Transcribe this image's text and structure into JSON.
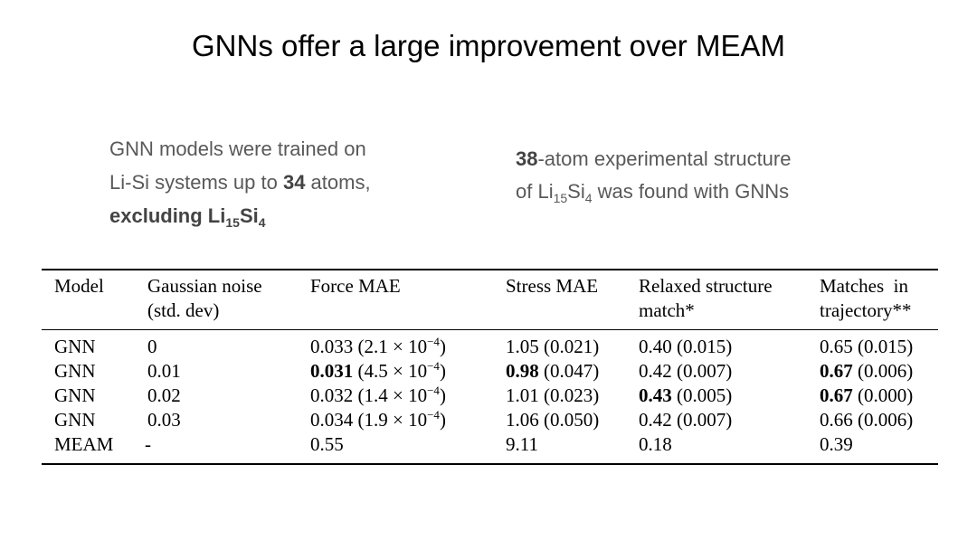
{
  "title": "GNNs offer a large improvement over MEAM",
  "note_left": {
    "line1": "GNN models were trained on",
    "line2_pre": "Li-Si systems up to ",
    "line2_bold": "34",
    "line2_post": " atoms,",
    "line3_bold": "excluding Li",
    "line3_sub1": "15",
    "line3_mid": "Si",
    "line3_sub2": "4"
  },
  "note_right": {
    "line1_bold": "38",
    "line1_post": "-atom experimental structure",
    "line2_pre": "of Li",
    "line2_sub1": "15",
    "line2_mid": "Si",
    "line2_sub2": "4",
    "line2_post": " was found with GNNs"
  },
  "table": {
    "headers": {
      "model": "Model",
      "noise_1": "Gaussian noise",
      "noise_2": "(std. dev)",
      "force": "Force MAE",
      "stress": "Stress MAE",
      "relaxed_1": "Relaxed structure",
      "relaxed_2": "match*",
      "matches_1": "Matches  in",
      "matches_2": "trajectory**"
    },
    "rows": [
      {
        "model": "GNN",
        "noise": "0",
        "force": "0.033",
        "force_rest": " (2.1 × 10",
        "force_exp": "−4",
        "force_close": ")",
        "stress": "1.05",
        "stress_rest": " (0.021)",
        "relaxed": "0.40",
        "relaxed_rest": " (0.015)",
        "matches": "0.65",
        "matches_rest": " (0.015)"
      },
      {
        "model": "GNN",
        "noise": "0.01",
        "force": "0.031",
        "force_rest": " (4.5 × 10",
        "force_exp": "−4",
        "force_close": ")",
        "stress": "0.98",
        "stress_rest": " (0.047)",
        "relaxed": "0.42",
        "relaxed_rest": " (0.007)",
        "matches": "0.67",
        "matches_rest": " (0.006)"
      },
      {
        "model": "GNN",
        "noise": "0.02",
        "force": "0.032",
        "force_rest": " (1.4 × 10",
        "force_exp": "−4",
        "force_close": ")",
        "stress": "1.01",
        "stress_rest": " (0.023)",
        "relaxed": "0.43",
        "relaxed_rest": " (0.005)",
        "matches": "0.67",
        "matches_rest": " (0.000)"
      },
      {
        "model": "GNN",
        "noise": "0.03",
        "force": "0.034",
        "force_rest": " (1.9 × 10",
        "force_exp": "−4",
        "force_close": ")",
        "stress": "1.06",
        "stress_rest": " (0.050)",
        "relaxed": "0.42",
        "relaxed_rest": " (0.007)",
        "matches": "0.66",
        "matches_rest": " (0.006)"
      },
      {
        "model": "MEAM",
        "noise": "-",
        "force": "0.55",
        "force_rest": "",
        "force_exp": "",
        "force_close": "",
        "stress": "9.11",
        "stress_rest": "",
        "relaxed": "0.18",
        "relaxed_rest": "",
        "matches": "0.39",
        "matches_rest": ""
      }
    ]
  }
}
